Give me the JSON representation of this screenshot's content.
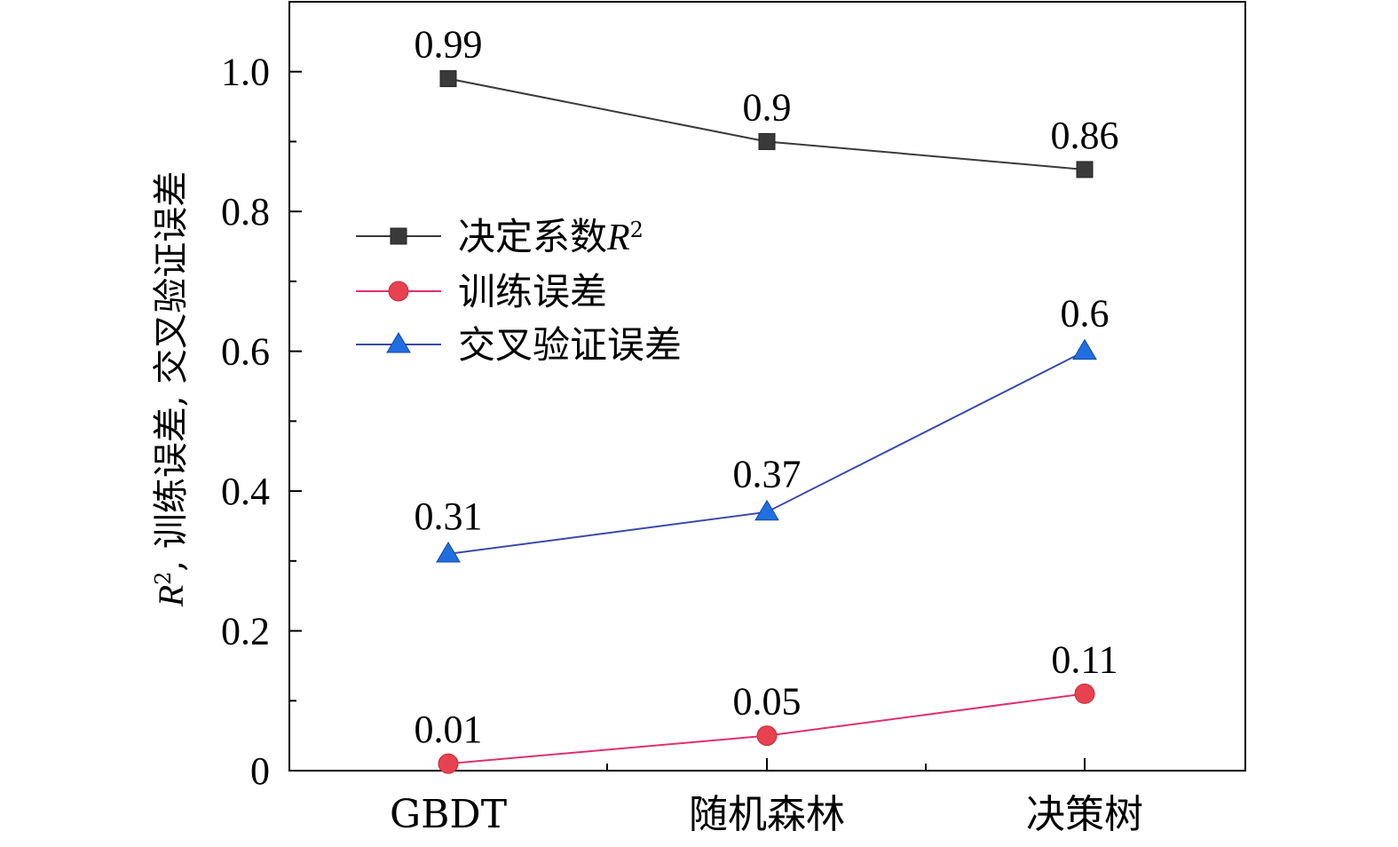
{
  "chart_data": {
    "type": "line",
    "categories": [
      "GBDT",
      "随机森林",
      "决策树"
    ],
    "series": [
      {
        "name": "决定系数R²",
        "legend_text": "决定系数",
        "legend_italic": "R",
        "legend_sup": "2",
        "values": [
          0.99,
          0.9,
          0.86
        ],
        "labels": [
          "0.99",
          "0.9",
          "0.86"
        ],
        "color": "#3a3a3a",
        "line_color": "#3a3a3a",
        "marker": "square"
      },
      {
        "name": "训练误差",
        "legend_text": "训练误差",
        "legend_italic": "",
        "legend_sup": "",
        "values": [
          0.01,
          0.05,
          0.11
        ],
        "labels": [
          "0.01",
          "0.05",
          "0.11"
        ],
        "color": "#e8414f",
        "line_color": "#e0306a",
        "marker": "circle"
      },
      {
        "name": "交叉验证误差",
        "legend_text": "交叉验证误差",
        "legend_italic": "",
        "legend_sup": "",
        "values": [
          0.31,
          0.37,
          0.6
        ],
        "labels": [
          "0.31",
          "0.37",
          "0.6"
        ],
        "color": "#1f6fe0",
        "line_color": "#3a4aa8",
        "marker": "triangle"
      }
    ],
    "ylabel": {
      "italic": "R",
      "sup": "2",
      "rest": ", 训练误差, 交叉验证误差"
    },
    "xlabel": "",
    "ylim": [
      0,
      1.1
    ],
    "yticks": [
      0,
      0.2,
      0.4,
      0.6,
      0.8,
      1.0
    ],
    "ytick_labels": [
      "0",
      "0.2",
      "0.4",
      "0.6",
      "0.8",
      "1.0"
    ],
    "grid": false,
    "legend_position": "center-left"
  }
}
